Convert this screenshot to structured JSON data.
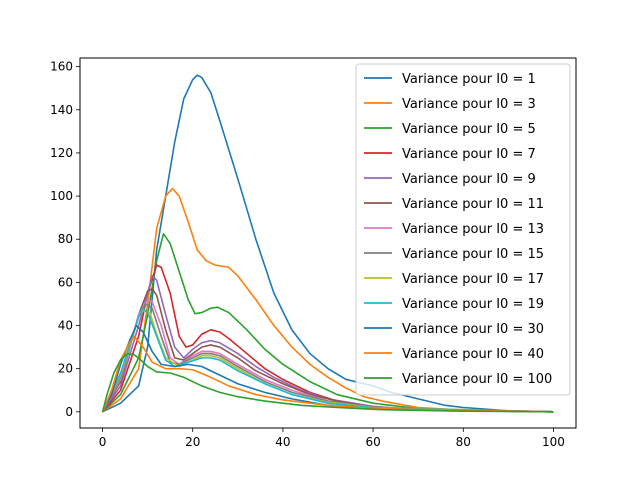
{
  "chart_data": {
    "type": "line",
    "title": "",
    "xlabel": "",
    "ylabel": "",
    "xlim": [
      -5,
      105
    ],
    "ylim": [
      -7.5,
      164
    ],
    "xticks": [
      0,
      20,
      40,
      60,
      80,
      100
    ],
    "yticks": [
      0,
      20,
      40,
      60,
      80,
      100,
      120,
      140,
      160
    ],
    "legend_position": "top-right",
    "series": [
      {
        "name": "Variance pour I0 = 1",
        "color": "#1f77b4",
        "points": [
          [
            0,
            0
          ],
          [
            4,
            4
          ],
          [
            8,
            12
          ],
          [
            10,
            30
          ],
          [
            12,
            75
          ],
          [
            14,
            100
          ],
          [
            16,
            125
          ],
          [
            18,
            145
          ],
          [
            20,
            154
          ],
          [
            21,
            156
          ],
          [
            22,
            155
          ],
          [
            24,
            148
          ],
          [
            26,
            135
          ],
          [
            30,
            108
          ],
          [
            34,
            80
          ],
          [
            38,
            55
          ],
          [
            42,
            38
          ],
          [
            46,
            27
          ],
          [
            50,
            20
          ],
          [
            54,
            15
          ],
          [
            58,
            13
          ],
          [
            60,
            12
          ],
          [
            64,
            9
          ],
          [
            70,
            6
          ],
          [
            76,
            3
          ],
          [
            80,
            2
          ],
          [
            90,
            0.5
          ],
          [
            100,
            0
          ]
        ]
      },
      {
        "name": "Variance pour I0 = 3",
        "color": "#ff7f0e",
        "points": [
          [
            0,
            0
          ],
          [
            4,
            6
          ],
          [
            8,
            20
          ],
          [
            10,
            50
          ],
          [
            12,
            85
          ],
          [
            14,
            100
          ],
          [
            15.5,
            103.5
          ],
          [
            17,
            100
          ],
          [
            19,
            88
          ],
          [
            21,
            75
          ],
          [
            23,
            70
          ],
          [
            25,
            68
          ],
          [
            28,
            67
          ],
          [
            30,
            63
          ],
          [
            34,
            52
          ],
          [
            38,
            40
          ],
          [
            42,
            30
          ],
          [
            46,
            22
          ],
          [
            50,
            16
          ],
          [
            54,
            11
          ],
          [
            58,
            7
          ],
          [
            62,
            5
          ],
          [
            70,
            2
          ],
          [
            80,
            0.8
          ],
          [
            100,
            0
          ]
        ]
      },
      {
        "name": "Variance pour I0 = 5",
        "color": "#2ca02c",
        "points": [
          [
            0,
            0
          ],
          [
            4,
            8
          ],
          [
            8,
            25
          ],
          [
            10,
            45
          ],
          [
            12,
            70
          ],
          [
            13.5,
            82.5
          ],
          [
            15,
            78
          ],
          [
            17,
            65
          ],
          [
            19,
            52
          ],
          [
            20.5,
            45.5
          ],
          [
            22,
            46
          ],
          [
            24,
            48
          ],
          [
            25.5,
            48.5
          ],
          [
            28,
            46
          ],
          [
            32,
            38
          ],
          [
            36,
            29
          ],
          [
            40,
            22
          ],
          [
            46,
            14
          ],
          [
            52,
            8
          ],
          [
            60,
            4
          ],
          [
            70,
            1.5
          ],
          [
            80,
            0.5
          ],
          [
            100,
            0
          ]
        ]
      },
      {
        "name": "Variance pour I0 = 7",
        "color": "#d62728",
        "points": [
          [
            0,
            0
          ],
          [
            4,
            10
          ],
          [
            8,
            35
          ],
          [
            10,
            55
          ],
          [
            12,
            68
          ],
          [
            13,
            67
          ],
          [
            15,
            55
          ],
          [
            17,
            35
          ],
          [
            18.5,
            30
          ],
          [
            20,
            31
          ],
          [
            22,
            36
          ],
          [
            24,
            38
          ],
          [
            26,
            37
          ],
          [
            28,
            34
          ],
          [
            32,
            27
          ],
          [
            36,
            20
          ],
          [
            40,
            15
          ],
          [
            46,
            9
          ],
          [
            52,
            5
          ],
          [
            60,
            2.5
          ],
          [
            70,
            1
          ],
          [
            100,
            0
          ]
        ]
      },
      {
        "name": "Variance pour I0 = 9",
        "color": "#9467bd",
        "points": [
          [
            0,
            0
          ],
          [
            4,
            12
          ],
          [
            8,
            40
          ],
          [
            10,
            55
          ],
          [
            11,
            63
          ],
          [
            12,
            61
          ],
          [
            14,
            45
          ],
          [
            16,
            30
          ],
          [
            18,
            25
          ],
          [
            20,
            29
          ],
          [
            22,
            32
          ],
          [
            24,
            33
          ],
          [
            26,
            32
          ],
          [
            30,
            27
          ],
          [
            34,
            21
          ],
          [
            38,
            16
          ],
          [
            44,
            10
          ],
          [
            50,
            6
          ],
          [
            60,
            2.5
          ],
          [
            70,
            1
          ],
          [
            100,
            0
          ]
        ]
      },
      {
        "name": "Variance pour I0 = 11",
        "color": "#8c564b",
        "points": [
          [
            0,
            0
          ],
          [
            4,
            14
          ],
          [
            8,
            45
          ],
          [
            10,
            56
          ],
          [
            11,
            57
          ],
          [
            12,
            54
          ],
          [
            14,
            38
          ],
          [
            16,
            25
          ],
          [
            18,
            24
          ],
          [
            20,
            27
          ],
          [
            22,
            30
          ],
          [
            24,
            31
          ],
          [
            26,
            30
          ],
          [
            30,
            25
          ],
          [
            34,
            19
          ],
          [
            40,
            13
          ],
          [
            46,
            8
          ],
          [
            52,
            5
          ],
          [
            60,
            2
          ],
          [
            70,
            0.8
          ],
          [
            100,
            0
          ]
        ]
      },
      {
        "name": "Variance pour I0 = 13",
        "color": "#e377c2",
        "points": [
          [
            0,
            0
          ],
          [
            4,
            15
          ],
          [
            8,
            45
          ],
          [
            10,
            52
          ],
          [
            11,
            51
          ],
          [
            13,
            40
          ],
          [
            15,
            25
          ],
          [
            17,
            22
          ],
          [
            20,
            26
          ],
          [
            22,
            28
          ],
          [
            24,
            28
          ],
          [
            26,
            27
          ],
          [
            30,
            22
          ],
          [
            36,
            15
          ],
          [
            42,
            10
          ],
          [
            50,
            5
          ],
          [
            60,
            2
          ],
          [
            70,
            0.8
          ],
          [
            100,
            0
          ]
        ]
      },
      {
        "name": "Variance pour I0 = 15",
        "color": "#7f7f7f",
        "points": [
          [
            0,
            0
          ],
          [
            4,
            16
          ],
          [
            8,
            44
          ],
          [
            9.5,
            50
          ],
          [
            11,
            48
          ],
          [
            13,
            35
          ],
          [
            15,
            23
          ],
          [
            17,
            22
          ],
          [
            20,
            25
          ],
          [
            22,
            27
          ],
          [
            24,
            27
          ],
          [
            26,
            26
          ],
          [
            30,
            21
          ],
          [
            36,
            14
          ],
          [
            42,
            9
          ],
          [
            50,
            5
          ],
          [
            60,
            2
          ],
          [
            100,
            0
          ]
        ]
      },
      {
        "name": "Variance pour I0 = 17",
        "color": "#bcbd22",
        "points": [
          [
            0,
            0
          ],
          [
            4,
            17
          ],
          [
            8,
            44
          ],
          [
            9,
            47
          ],
          [
            10.5,
            46
          ],
          [
            12,
            36
          ],
          [
            14,
            25
          ],
          [
            17,
            21
          ],
          [
            20,
            24
          ],
          [
            22,
            26
          ],
          [
            24,
            26
          ],
          [
            26,
            25
          ],
          [
            30,
            20
          ],
          [
            36,
            13
          ],
          [
            42,
            8
          ],
          [
            50,
            4.5
          ],
          [
            60,
            2
          ],
          [
            100,
            0
          ]
        ]
      },
      {
        "name": "Variance pour I0 = 19",
        "color": "#17becf",
        "points": [
          [
            0,
            0
          ],
          [
            4,
            18
          ],
          [
            8,
            44
          ],
          [
            9,
            48
          ],
          [
            10,
            46
          ],
          [
            12,
            35
          ],
          [
            14,
            24
          ],
          [
            16,
            21
          ],
          [
            19,
            23
          ],
          [
            22,
            25
          ],
          [
            24,
            25
          ],
          [
            26,
            24
          ],
          [
            30,
            19
          ],
          [
            36,
            13
          ],
          [
            42,
            8
          ],
          [
            50,
            4
          ],
          [
            60,
            1.8
          ],
          [
            100,
            0
          ]
        ]
      },
      {
        "name": "Variance pour I0 = 30",
        "color": "#1f77b4",
        "points": [
          [
            0,
            0
          ],
          [
            2,
            8
          ],
          [
            4,
            22
          ],
          [
            6,
            33
          ],
          [
            7.5,
            40
          ],
          [
            9,
            37
          ],
          [
            11,
            28
          ],
          [
            13,
            22
          ],
          [
            16,
            21
          ],
          [
            19,
            22
          ],
          [
            22,
            21
          ],
          [
            26,
            17
          ],
          [
            30,
            13
          ],
          [
            36,
            9
          ],
          [
            42,
            6
          ],
          [
            50,
            3
          ],
          [
            60,
            1.5
          ],
          [
            100,
            0
          ]
        ]
      },
      {
        "name": "Variance pour I0 = 40",
        "color": "#ff7f0e",
        "points": [
          [
            0,
            0
          ],
          [
            2,
            10
          ],
          [
            4,
            24
          ],
          [
            6,
            32
          ],
          [
            7,
            35
          ],
          [
            9,
            30
          ],
          [
            11,
            23
          ],
          [
            14,
            20
          ],
          [
            17,
            20
          ],
          [
            20,
            19.5
          ],
          [
            24,
            16
          ],
          [
            28,
            12
          ],
          [
            34,
            8
          ],
          [
            40,
            5.5
          ],
          [
            50,
            3
          ],
          [
            60,
            1.5
          ],
          [
            100,
            0
          ]
        ]
      },
      {
        "name": "Variance pour I0 = 100",
        "color": "#2ca02c",
        "points": [
          [
            0,
            0
          ],
          [
            1,
            8
          ],
          [
            2.5,
            18
          ],
          [
            4,
            24
          ],
          [
            5.5,
            27
          ],
          [
            7,
            26.5
          ],
          [
            8.5,
            24
          ],
          [
            10,
            21
          ],
          [
            12,
            18.5
          ],
          [
            15,
            18
          ],
          [
            18,
            16
          ],
          [
            22,
            12
          ],
          [
            26,
            9
          ],
          [
            30,
            7
          ],
          [
            36,
            5
          ],
          [
            44,
            3
          ],
          [
            52,
            2
          ],
          [
            62,
            1
          ],
          [
            80,
            0.3
          ],
          [
            100,
            0
          ]
        ]
      }
    ]
  }
}
